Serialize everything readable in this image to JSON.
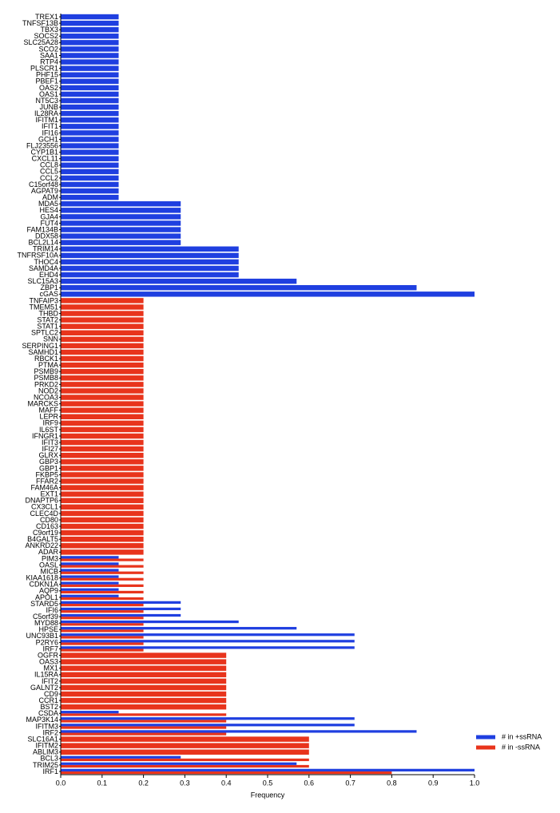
{
  "chart_data": {
    "type": "barh",
    "xlabel": "Frequency",
    "categories": [
      "TREX1",
      "TNFSF13B",
      "TBX3",
      "SOCS2",
      "SLC25A28",
      "SCO2",
      "SAA1",
      "RTP4",
      "PLSCR1",
      "PHF15",
      "PBEF1",
      "OAS2",
      "OAS1",
      "NT5C3",
      "JUNB",
      "IL28RA",
      "IFITM1",
      "IFIT1",
      "IFI16",
      "GCH1",
      "FLJ23556",
      "CYP1B1",
      "CXCL11",
      "CCL8",
      "CCL5",
      "CCL2",
      "C15orf48",
      "AGPAT9",
      "ADM",
      "MDA5",
      "HES4",
      "GJA4",
      "FUT4",
      "FAM134B",
      "DDX58",
      "BCL2L14",
      "TRIM14",
      "TNFRSF10A",
      "THOC4",
      "SAMD4A",
      "EHD4",
      "SLC15A3",
      "ZBP1",
      "cGAS",
      "TNFAIP3",
      "TMEM51",
      "THBD",
      "STAT2",
      "STAT1",
      "SPTLC2",
      "SNN",
      "SERPING1",
      "SAMHD1",
      "RBCK1",
      "PTMA",
      "PSMB9",
      "PSMB8",
      "PRKD2",
      "NOD2",
      "NCOA3",
      "MARCKS",
      "MAFF",
      "LEPR",
      "IRF9",
      "IL6ST",
      "IFNGR1",
      "IFIT3",
      "IFI27",
      "GLRX",
      "GBP3",
      "GBP1",
      "FKBP5",
      "FFAR2",
      "FAM46A",
      "EXT1",
      "DNAPTP6",
      "CX3CL1",
      "CLEC4D",
      "CD80",
      "CD163",
      "C9orf19",
      "B4GALT5",
      "ANKRD22",
      "ADAR",
      "PIM3",
      "OASL",
      "MICB",
      "KIAA1618",
      "CDKN1A",
      "AQP9",
      "APOL1",
      "STARD5",
      "IFI6",
      "C5orf39",
      "MYD88",
      "HPSE",
      "UNC93B1",
      "P2RY6",
      "IRF7",
      "OGFR",
      "OAS3",
      "MX1",
      "IL15RA",
      "IFIT2",
      "GALNT2",
      "CD9",
      "CCR1",
      "BST2",
      "CSDA",
      "MAP3K14",
      "IFITM3",
      "IRF2",
      "SLC16A1",
      "IFITM2",
      "ABLIM3",
      "BCL3",
      "TRIM25",
      "IRF1"
    ],
    "series": [
      {
        "name": "# in +ssRNA",
        "color": "#1f3fe0",
        "values": [
          0.14,
          0.14,
          0.14,
          0.14,
          0.14,
          0.14,
          0.14,
          0.14,
          0.14,
          0.14,
          0.14,
          0.14,
          0.14,
          0.14,
          0.14,
          0.14,
          0.14,
          0.14,
          0.14,
          0.14,
          0.14,
          0.14,
          0.14,
          0.14,
          0.14,
          0.14,
          0.14,
          0.14,
          0.14,
          0.29,
          0.29,
          0.29,
          0.29,
          0.29,
          0.29,
          0.29,
          0.43,
          0.43,
          0.43,
          0.43,
          0.43,
          0.57,
          0.86,
          1.0,
          0,
          0,
          0,
          0,
          0,
          0,
          0,
          0,
          0,
          0,
          0,
          0,
          0,
          0,
          0,
          0,
          0,
          0,
          0,
          0,
          0,
          0,
          0,
          0,
          0,
          0,
          0,
          0,
          0,
          0,
          0,
          0,
          0,
          0,
          0,
          0,
          0,
          0,
          0,
          0,
          0.14,
          0.14,
          0.14,
          0.14,
          0.14,
          0.14,
          0.14,
          0.29,
          0.29,
          0.29,
          0.43,
          0.57,
          0.71,
          0.71,
          0.71,
          0,
          0,
          0,
          0,
          0,
          0,
          0,
          0,
          0,
          0.14,
          0.71,
          0.71,
          0.86,
          0,
          0,
          0,
          0.29,
          0.57,
          1.0
        ]
      },
      {
        "name": "# in -ssRNA",
        "color": "#e8341c",
        "values": [
          0,
          0,
          0,
          0,
          0,
          0,
          0,
          0,
          0,
          0,
          0,
          0,
          0,
          0,
          0,
          0,
          0,
          0,
          0,
          0,
          0,
          0,
          0,
          0,
          0,
          0,
          0,
          0,
          0,
          0,
          0,
          0,
          0,
          0,
          0,
          0,
          0,
          0,
          0,
          0,
          0,
          0,
          0,
          0,
          0.2,
          0.2,
          0.2,
          0.2,
          0.2,
          0.2,
          0.2,
          0.2,
          0.2,
          0.2,
          0.2,
          0.2,
          0.2,
          0.2,
          0.2,
          0.2,
          0.2,
          0.2,
          0.2,
          0.2,
          0.2,
          0.2,
          0.2,
          0.2,
          0.2,
          0.2,
          0.2,
          0.2,
          0.2,
          0.2,
          0.2,
          0.2,
          0.2,
          0.2,
          0.2,
          0.2,
          0.2,
          0.2,
          0.2,
          0.2,
          0.2,
          0.2,
          0.2,
          0.2,
          0.2,
          0.2,
          0.2,
          0.2,
          0.2,
          0.2,
          0.2,
          0.2,
          0.2,
          0.2,
          0.2,
          0.4,
          0.4,
          0.4,
          0.4,
          0.4,
          0.4,
          0.4,
          0.4,
          0.4,
          0.4,
          0.4,
          0.4,
          0.4,
          0.6,
          0.6,
          0.6,
          0.6,
          0.6,
          0.8
        ]
      }
    ],
    "xlim": [
      0,
      1
    ],
    "xticks": [
      {
        "value": 0,
        "label": "0.0"
      },
      0.1,
      0.2,
      0.3,
      0.4,
      0.5,
      0.6,
      0.7,
      0.8,
      0.9,
      {
        "value": 1,
        "label": "1.0"
      }
    ],
    "legend": "lower right"
  }
}
